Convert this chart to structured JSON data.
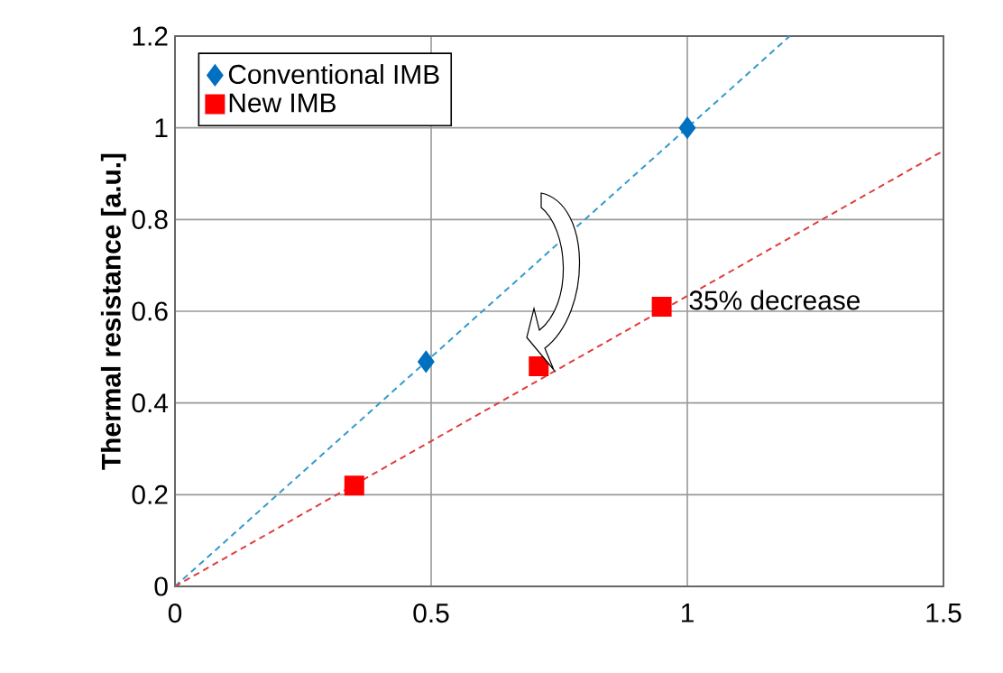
{
  "chart_data": {
    "type": "scatter",
    "ylabel": "Thermal resistance  [a.u.]",
    "xlim": [
      0,
      1.5
    ],
    "ylim": [
      0,
      1.2
    ],
    "xticks": [
      0,
      0.5,
      1,
      1.5
    ],
    "yticks": [
      0,
      0.2,
      0.4,
      0.6,
      0.8,
      1,
      1.2
    ],
    "grid": true,
    "legend": "top left",
    "series": [
      {
        "name": "Conventional IMB",
        "color": "#0070c0",
        "marker": "diamond",
        "x": [
          0.49,
          1.0
        ],
        "values": [
          0.49,
          1.0
        ]
      },
      {
        "name": "New IMB",
        "color": "#ff0000",
        "marker": "square",
        "x": [
          0.35,
          0.71,
          0.95
        ],
        "values": [
          0.22,
          0.48,
          0.61
        ]
      },
      {
        "type": "line",
        "color": "#3399cc",
        "line_style": "dashed",
        "marker": "none",
        "x": [
          0,
          1.2
        ],
        "values": [
          0,
          1.2
        ]
      },
      {
        "type": "line",
        "color": "#e03c3c",
        "line_style": "dashed",
        "marker": "none",
        "x": [
          0,
          1.5
        ],
        "values": [
          0,
          0.95
        ]
      }
    ],
    "annotations": [
      "35% decrease"
    ]
  }
}
